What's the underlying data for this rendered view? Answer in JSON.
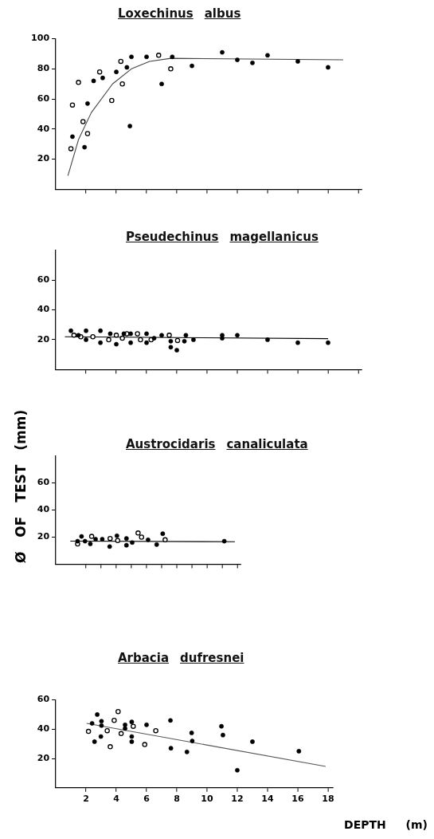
{
  "chart_data": [
    {
      "type": "scatter",
      "title": "Loxechinus albus",
      "xlim": [
        0,
        20.2
      ],
      "xticks": [
        2,
        4,
        6,
        8,
        10,
        12,
        14,
        16,
        18,
        20
      ],
      "ylim": [
        0,
        100
      ],
      "yticks": [
        20,
        40,
        60,
        80,
        100
      ],
      "tick_labels": "y",
      "series": [
        {
          "color": "#000000",
          "marker": "circle",
          "x": [
            1.1,
            2.1,
            1.9,
            2.5,
            3.1,
            4.0,
            4.7,
            5.0,
            4.9,
            6.0,
            7.0,
            7.7,
            9.0,
            11.0,
            12.0,
            13.0,
            14.0,
            16.0,
            18.0
          ],
          "values": [
            35,
            57,
            28,
            72,
            74,
            78,
            81,
            88,
            42,
            88,
            70,
            88,
            82,
            91,
            86,
            84,
            89,
            85,
            81
          ]
        },
        {
          "color": "#000000",
          "marker": "circle",
          "x": [
            1.0,
            1.1,
            1.5,
            1.8,
            2.1,
            2.9,
            3.7,
            4.3,
            4.4,
            6.8,
            7.6
          ],
          "values": [
            27,
            56,
            71,
            45,
            37,
            78,
            59,
            85,
            70,
            89,
            80
          ]
        },
        {
          "type": "line",
          "color": "#444444",
          "marker": "none",
          "x": [
            0.8,
            1.5,
            2.35,
            3.75,
            5.0,
            6.2,
            7.6,
            19.0
          ],
          "values": [
            9,
            33,
            51,
            70,
            80,
            85,
            87,
            86
          ]
        }
      ]
    },
    {
      "type": "scatter",
      "title": "Pseudechinus magellanicus",
      "xlim": [
        0,
        20.2
      ],
      "xticks": [
        2,
        4,
        6,
        8,
        10,
        12,
        14,
        16,
        18,
        20
      ],
      "ylim": [
        0,
        80
      ],
      "yticks": [
        20,
        40,
        60
      ],
      "tick_labels": "y",
      "series": [
        {
          "color": "#000000",
          "marker": "circle",
          "x": [
            1.0,
            1.5,
            2.0,
            2.0,
            2.95,
            2.95,
            3.6,
            4.0,
            4.5,
            4.95,
            4.95,
            6.0,
            6.0,
            6.5,
            7.0,
            7.6,
            7.6,
            8.0,
            8.5,
            8.6,
            9.1,
            11.0,
            11.0,
            12.0,
            14.0,
            16.0,
            18.0
          ],
          "values": [
            26,
            23,
            26,
            20,
            26,
            18,
            24,
            17,
            24,
            24,
            18,
            24,
            18,
            21,
            23,
            19,
            15,
            13,
            19,
            23,
            20,
            23,
            21,
            23,
            20,
            18,
            18
          ]
        },
        {
          "color": "#000000",
          "marker": "circle",
          "x": [
            1.2,
            1.65,
            2.45,
            3.5,
            4.0,
            4.4,
            4.7,
            5.4,
            5.6,
            6.3,
            7.5,
            8.05
          ],
          "values": [
            23,
            22,
            22,
            20,
            23,
            21,
            24,
            24,
            20,
            20,
            23,
            19.5
          ]
        },
        {
          "type": "line",
          "color": "#000000",
          "marker": "none",
          "x": [
            0.6,
            18.0
          ],
          "values": [
            22,
            20.7
          ]
        }
      ]
    },
    {
      "type": "scatter",
      "title": "Austrocidaris canaliculata",
      "ylabel": "Ø OF TEST (mm)",
      "xlim": [
        0,
        12.2
      ],
      "xticks": [
        2,
        3,
        4,
        5,
        6,
        7,
        8,
        9,
        10,
        11,
        12
      ],
      "ylim": [
        0,
        80
      ],
      "yticks": [
        20,
        40,
        60
      ],
      "tick_labels": "y",
      "series": [
        {
          "color": "#000000",
          "marker": "circle",
          "x": [
            1.44,
            1.7,
            1.93,
            2.28,
            2.63,
            3.07,
            3.56,
            4.04,
            4.67,
            4.67,
            5.05,
            6.1,
            6.67,
            7.07,
            11.14
          ],
          "values": [
            17,
            20.5,
            17,
            15,
            18.5,
            18.5,
            13,
            21,
            19,
            14,
            16,
            18,
            14.5,
            22.5,
            17
          ]
        },
        {
          "color": "#000000",
          "marker": "circle",
          "x": [
            1.44,
            2.37,
            3.59,
            4.09,
            5.44,
            5.67,
            7.23
          ],
          "values": [
            15,
            20.5,
            19,
            17.5,
            23,
            20,
            18
          ]
        },
        {
          "type": "line",
          "color": "#000000",
          "marker": "none",
          "x": [
            0.96,
            11.84
          ],
          "values": [
            17,
            16.6
          ]
        }
      ]
    },
    {
      "type": "scatter",
      "title": "Arbacia dufresnei",
      "xlabel": "DEPTH (m)",
      "xlim": [
        0,
        18.3
      ],
      "xticks": [
        2,
        4,
        6,
        8,
        10,
        12,
        14,
        16,
        18
      ],
      "ylim": [
        0,
        60
      ],
      "yticks": [
        20,
        40,
        60
      ],
      "series": [
        {
          "color": "#000000",
          "marker": "circle",
          "x": [
            2.4,
            2.74,
            2.56,
            3.02,
            3.02,
            2.98,
            4.58,
            4.58,
            5.02,
            5.02,
            5.02,
            6.0,
            7.58,
            7.61,
            8.67,
            8.98,
            9.02,
            10.95,
            11.05,
            12.0,
            13.0,
            16.07
          ],
          "values": [
            44,
            50,
            31.5,
            45.5,
            42.5,
            35,
            43,
            40.5,
            45,
            35,
            31.5,
            43,
            46,
            27,
            24.5,
            37.5,
            32,
            42,
            36,
            12,
            31.5,
            25
          ]
        },
        {
          "color": "#000000",
          "marker": "circle",
          "x": [
            2.16,
            3.4,
            3.6,
            3.86,
            4.12,
            4.32,
            5.12,
            5.88,
            6.61
          ],
          "values": [
            38.5,
            39,
            28,
            46,
            52,
            37,
            42,
            29.5,
            39
          ]
        },
        {
          "type": "line",
          "color": "#555555",
          "marker": "none",
          "x": [
            2.04,
            17.84
          ],
          "values": [
            44,
            14.6
          ]
        }
      ]
    }
  ]
}
